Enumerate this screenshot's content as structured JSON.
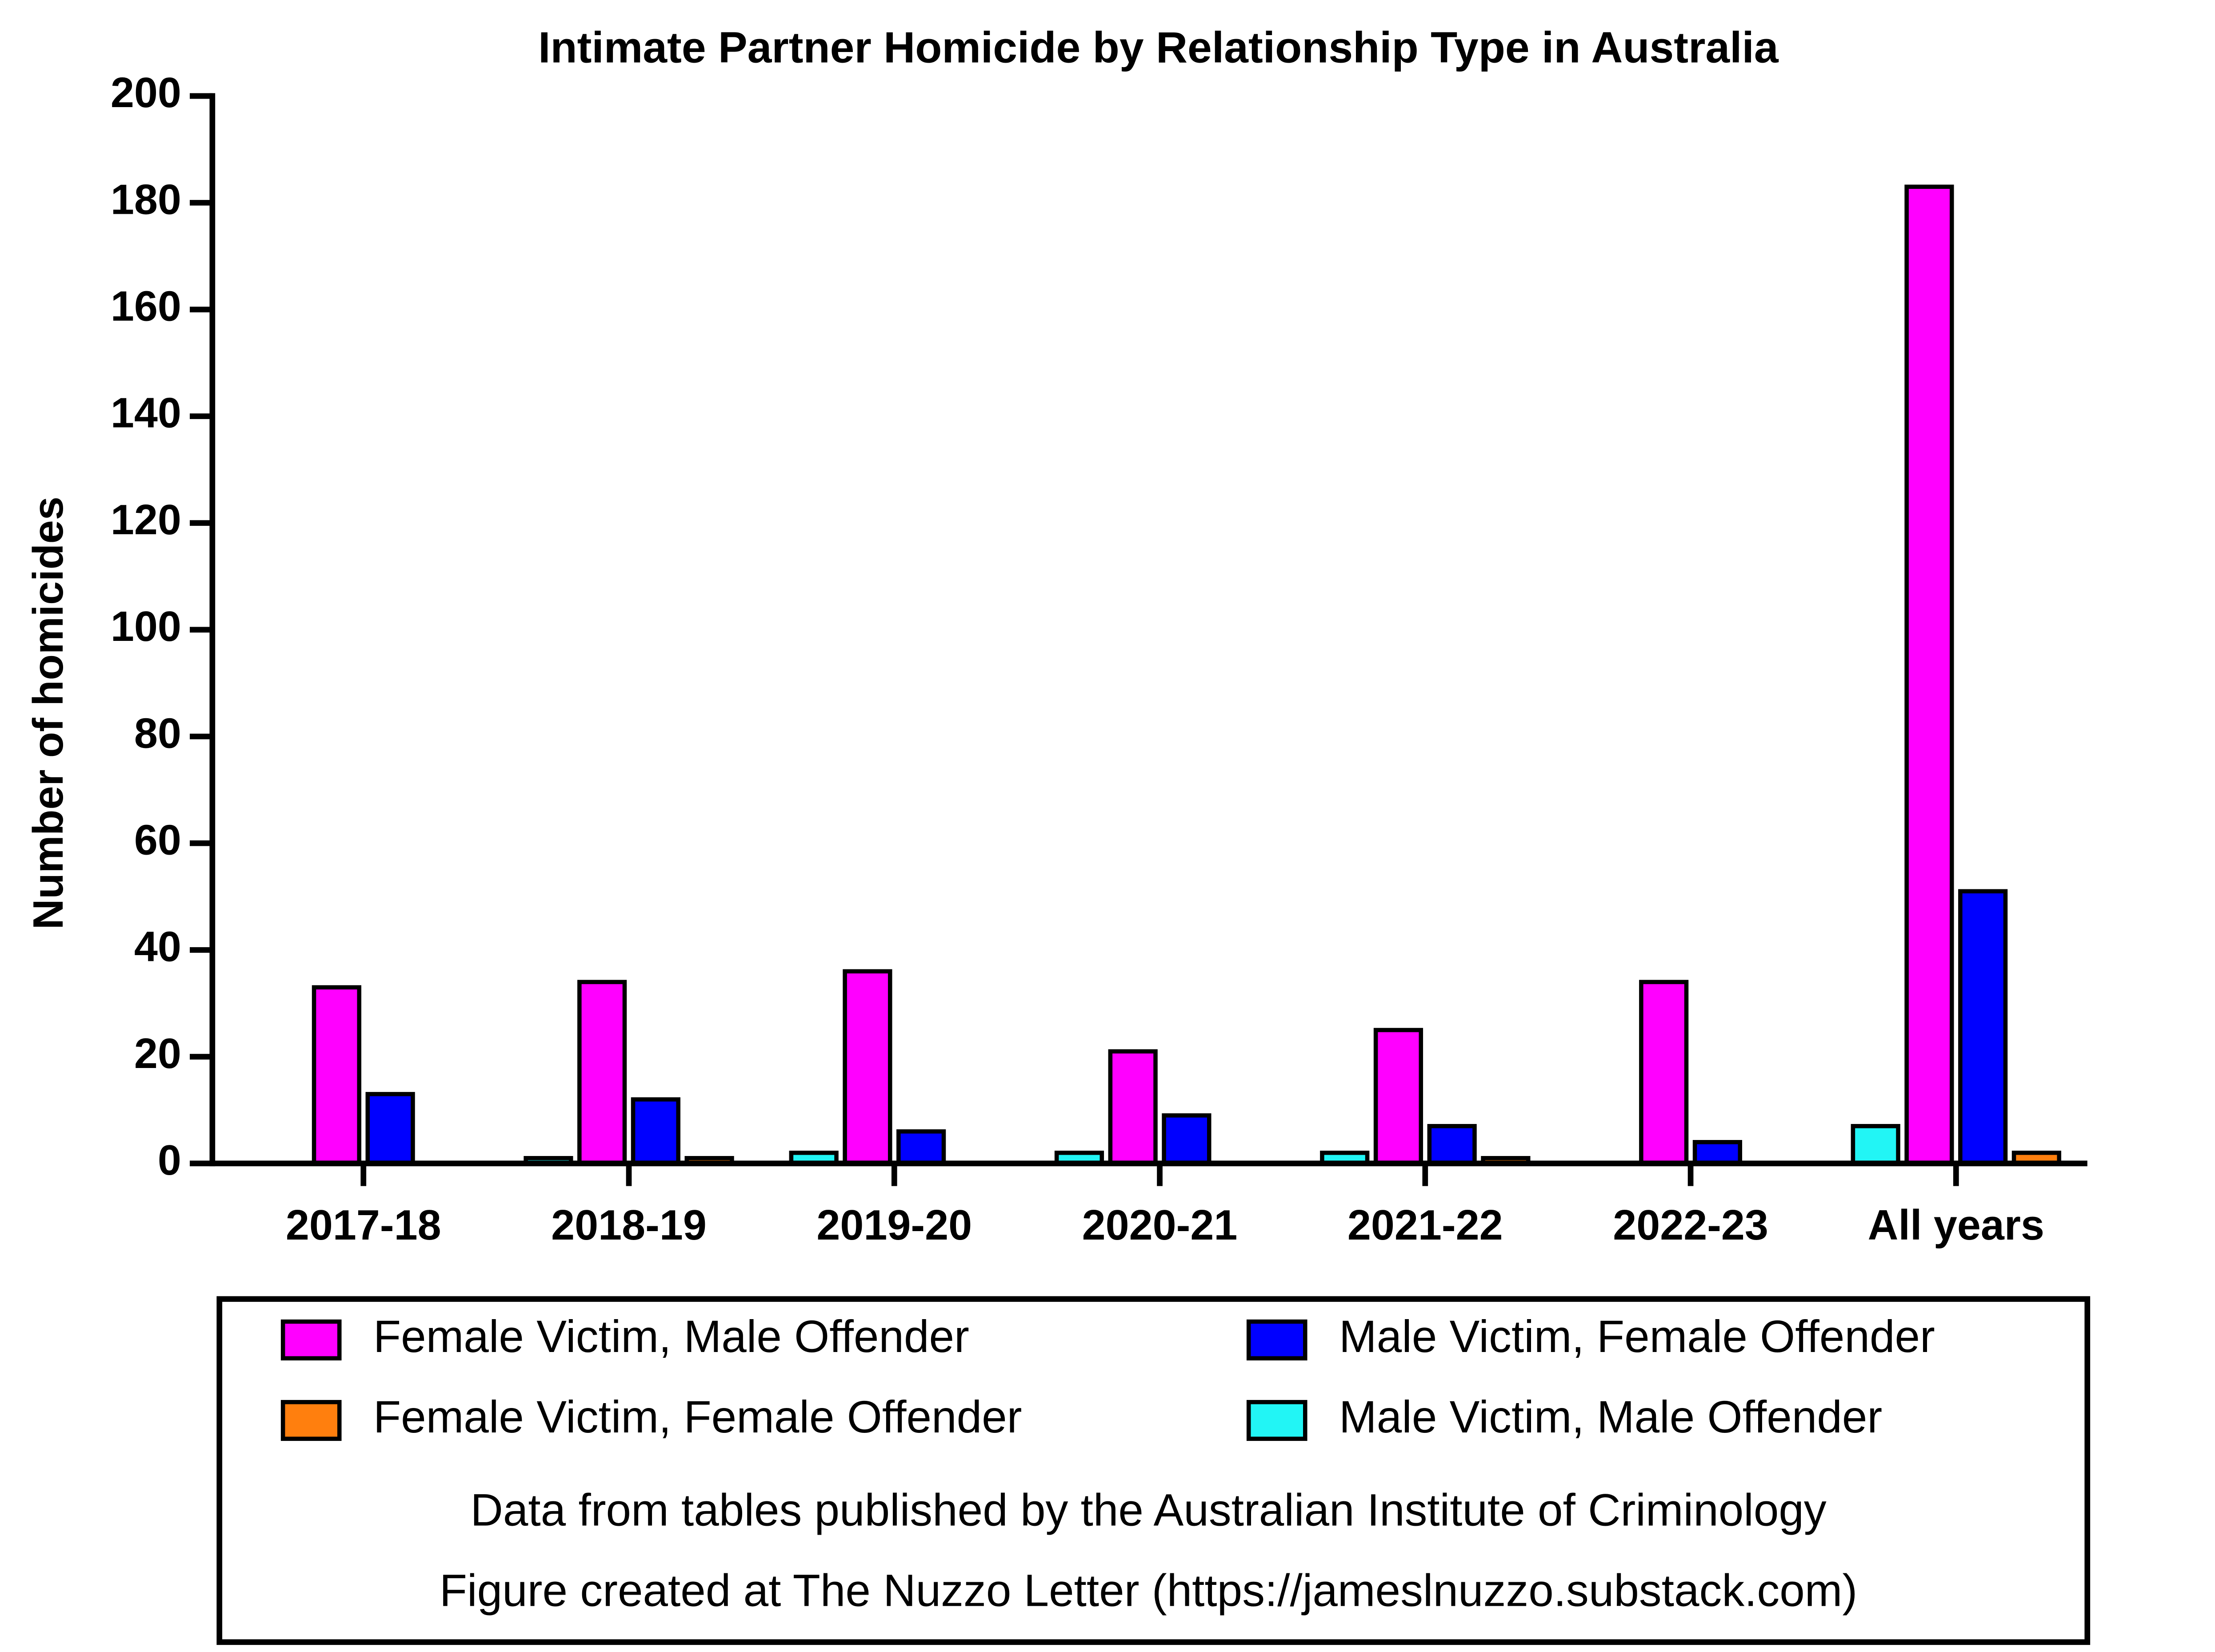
{
  "chart_data": {
    "type": "bar",
    "title": "Intimate Partner Homicide by Relationship Type in Australia",
    "y_label": "Number of homicides",
    "categories": [
      "2017-18",
      "2018-19",
      "2019-20",
      "2020-21",
      "2021-22",
      "2022-23",
      "All years"
    ],
    "series": [
      {
        "name": "Male Victim, Male Offender",
        "color": "#22f5f5",
        "values": [
          0,
          1,
          2,
          2,
          2,
          0,
          7
        ]
      },
      {
        "name": "Female Victim, Male Offender",
        "color": "#ff00ff",
        "values": [
          33,
          34,
          36,
          21,
          25,
          34,
          183
        ]
      },
      {
        "name": "Male Victim, Female Offender",
        "color": "#0000ff",
        "values": [
          13,
          12,
          6,
          9,
          7,
          4,
          51
        ]
      },
      {
        "name": "Female Victim, Female Offender",
        "color": "#ff7f0e",
        "values": [
          0,
          1,
          0,
          0,
          1,
          0,
          2
        ]
      }
    ],
    "ylim": [
      0,
      200
    ],
    "yticks": [
      0,
      20,
      40,
      60,
      80,
      100,
      120,
      140,
      160,
      180,
      200
    ],
    "notes": [
      "Data from tables published by the Australian Institute of Criminology",
      "Figure created at The Nuzzo Letter (https://jameslnuzzo.substack.com)"
    ]
  }
}
